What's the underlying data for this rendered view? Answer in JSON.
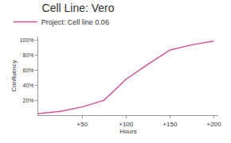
{
  "chart_data": {
    "type": "line",
    "title": "Cell Line: Vero",
    "x_label": "Hours",
    "y_label": "Confluency",
    "x": [
      0,
      25,
      50,
      75,
      100,
      125,
      150,
      175,
      200
    ],
    "series": [
      {
        "name": "Project: Cell line 0.06",
        "color": "#d4509a",
        "values": [
          2,
          5,
          11,
          20,
          48,
          68,
          87,
          94,
          99
        ]
      }
    ],
    "xlim": [
      0,
      205
    ],
    "xticks": [
      {
        "value": 50,
        "label": "+50"
      },
      {
        "value": 100,
        "label": "+100"
      },
      {
        "value": 150,
        "label": "+150"
      },
      {
        "value": 200,
        "label": "+200"
      }
    ],
    "ylim": [
      0,
      105
    ],
    "yticks": [
      {
        "value": 20,
        "label": "20%"
      },
      {
        "value": 40,
        "label": "40%"
      },
      {
        "value": 60,
        "label": "60%"
      },
      {
        "value": 80,
        "label": "80%"
      },
      {
        "value": 100,
        "label": "100%"
      }
    ],
    "grid": false,
    "legend": "top-left"
  }
}
